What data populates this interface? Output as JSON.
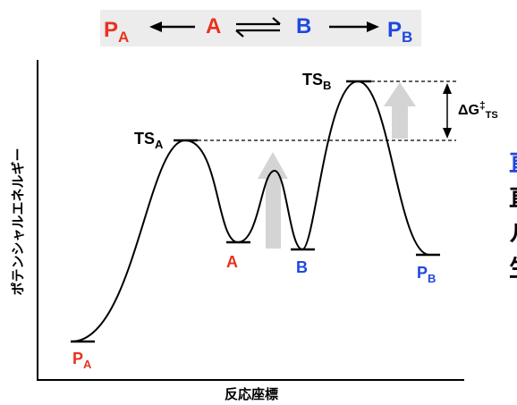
{
  "colors": {
    "red": "#e8321e",
    "blue": "#1f48e0",
    "black": "#000000",
    "gray_arrow": "#d4d4d4",
    "equation_bg": "#ececec"
  },
  "equation": {
    "pa_main": "P",
    "pa_sub": "A",
    "a": "A",
    "b": "B",
    "pb_main": "P",
    "pb_sub": "B"
  },
  "axes": {
    "ylabel": "ポテンシャルエネルギー",
    "xlabel": "反応座標"
  },
  "levels": {
    "pa_main": "P",
    "pa_sub": "A",
    "a": "A",
    "tsa_main": "TS",
    "tsa_sub": "A",
    "b": "B",
    "tsb_main": "TS",
    "tsb_sub": "B",
    "pb_main": "P",
    "pb_sub": "B"
  },
  "delta_g": {
    "main": "ΔG",
    "dagger": "‡",
    "sub": "TS"
  },
  "side_text": {
    "blue": "直",
    "line2": "直",
    "line3": "ル",
    "line4": "生"
  }
}
